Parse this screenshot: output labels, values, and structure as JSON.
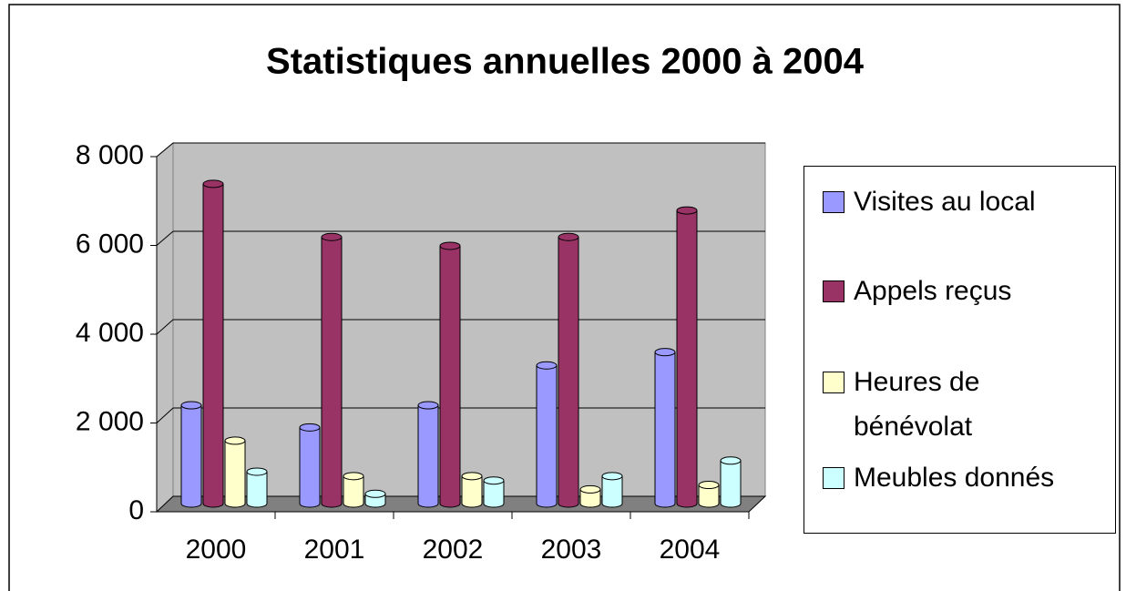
{
  "chart_data": {
    "type": "bar3d",
    "title": "Statistiques annuelles 2000 à 2004",
    "categories": [
      "2000",
      "2001",
      "2002",
      "2003",
      "2004"
    ],
    "series": [
      {
        "name": "Visites au local",
        "color": "#9999ff",
        "values": [
          2200,
          1700,
          2200,
          3100,
          3400
        ]
      },
      {
        "name": "Appels reçus",
        "color": "#993366",
        "values": [
          7200,
          6000,
          5800,
          6000,
          6600
        ]
      },
      {
        "name": "Heures de bénévolat",
        "color": "#ffffcc",
        "values": [
          1400,
          600,
          600,
          300,
          400
        ]
      },
      {
        "name": "Meubles donnés",
        "color": "#ccffff",
        "values": [
          700,
          200,
          500,
          600,
          950
        ]
      }
    ],
    "ylim": [
      0,
      8000
    ],
    "yticks": [
      0,
      {
        "value": 2000,
        "label": "2 000"
      },
      {
        "value": 4000,
        "label": "4 000"
      },
      {
        "value": 6000,
        "label": "6 000"
      },
      {
        "value": 8000,
        "label": "8 000"
      }
    ],
    "grid": true,
    "legend": "right"
  }
}
